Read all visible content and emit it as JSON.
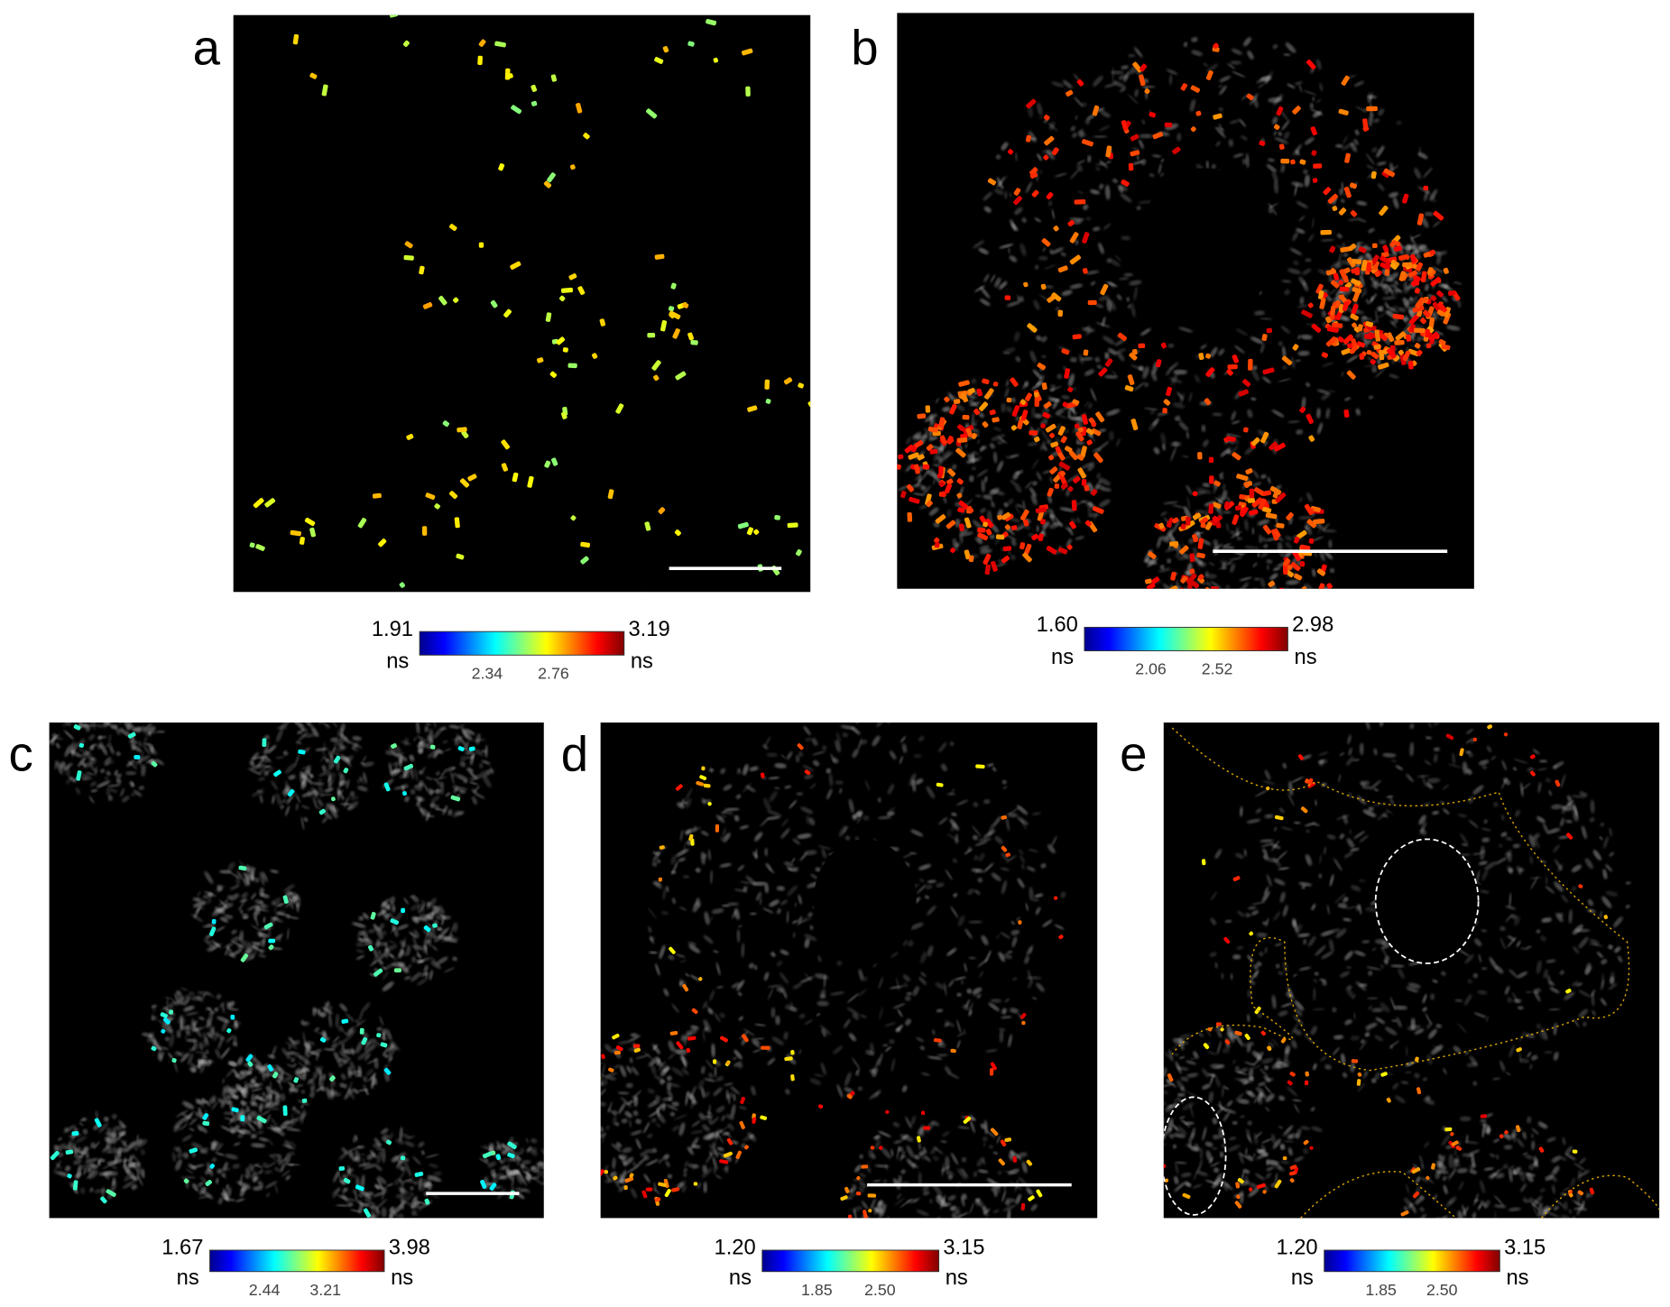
{
  "panels": [
    {
      "label": "a",
      "colorbar": {
        "min": "1.91",
        "max": "3.19",
        "unit": "ns",
        "ticks": [
          "2.34",
          "2.76"
        ]
      }
    },
    {
      "label": "b",
      "colorbar": {
        "min": "1.60",
        "max": "2.98",
        "unit": "ns",
        "ticks": [
          "2.06",
          "2.52"
        ]
      }
    },
    {
      "label": "c",
      "colorbar": {
        "min": "1.67",
        "max": "3.98",
        "unit": "ns",
        "ticks": [
          "2.44",
          "3.21"
        ]
      }
    },
    {
      "label": "d",
      "colorbar": {
        "min": "1.20",
        "max": "3.15",
        "unit": "ns",
        "ticks": [
          "1.85",
          "2.50"
        ]
      }
    },
    {
      "label": "e",
      "colorbar": {
        "min": "1.20",
        "max": "3.15",
        "unit": "ns",
        "ticks": [
          "1.85",
          "2.50"
        ]
      }
    }
  ]
}
